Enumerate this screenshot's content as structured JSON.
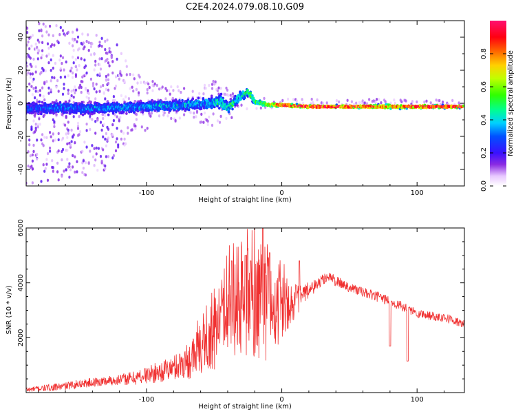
{
  "figure_title": "C2E4.2024.079.08.10.G09",
  "chart_data": [
    {
      "type": "heatmap",
      "name": "spectrogram",
      "xlabel": "Height of straight line (km)",
      "ylabel": "Frequency (Hz)",
      "xlim": [
        -189,
        135
      ],
      "ylim": [
        -50,
        50
      ],
      "xticks": [
        -100,
        0,
        100
      ],
      "yticks": [
        -40,
        -20,
        0,
        20,
        40
      ],
      "ytick_labels": [
        "-40",
        "-20",
        "0",
        "20",
        "40"
      ],
      "colorbar": {
        "label": "Normalized spectral amplitude",
        "range": [
          0,
          1
        ],
        "ticks": [
          0.0,
          0.2,
          0.4,
          0.6,
          0.8
        ],
        "tick_labels": [
          "0.0",
          "0.2",
          "0.4",
          "0.6",
          "0.8"
        ]
      },
      "band_center_hz": [
        [
          -189,
          -3
        ],
        [
          -160,
          -3
        ],
        [
          -130,
          -3
        ],
        [
          -100,
          -2
        ],
        [
          -70,
          -1
        ],
        [
          -55,
          0
        ],
        [
          -45,
          1
        ],
        [
          -40,
          -3
        ],
        [
          -32,
          3
        ],
        [
          -25,
          7
        ],
        [
          -20,
          1
        ],
        [
          -10,
          -1
        ],
        [
          0,
          -1
        ],
        [
          20,
          -2
        ],
        [
          60,
          -2
        ],
        [
          100,
          -2
        ],
        [
          135,
          -2
        ]
      ],
      "band_halfwidth_hz": [
        [
          -189,
          6
        ],
        [
          -120,
          5
        ],
        [
          -60,
          5
        ],
        [
          -45,
          6
        ],
        [
          -25,
          4
        ],
        [
          -15,
          2
        ],
        [
          0,
          1.5
        ],
        [
          60,
          1.2
        ],
        [
          80,
          2
        ],
        [
          100,
          1.5
        ],
        [
          135,
          1.2
        ]
      ],
      "band_peak_amplitude": [
        [
          -189,
          0.25
        ],
        [
          -140,
          0.3
        ],
        [
          -100,
          0.32
        ],
        [
          -60,
          0.35
        ],
        [
          -40,
          0.4
        ],
        [
          -25,
          0.45
        ],
        [
          -15,
          0.6
        ],
        [
          -5,
          0.85
        ],
        [
          0,
          1.0
        ],
        [
          60,
          1.0
        ],
        [
          80,
          0.8
        ],
        [
          100,
          1.0
        ],
        [
          135,
          1.0
        ]
      ],
      "noise_spread_hz": [
        [
          -189,
          50
        ],
        [
          -150,
          45
        ],
        [
          -125,
          40
        ],
        [
          -110,
          20
        ],
        [
          -90,
          12
        ],
        [
          -70,
          10
        ],
        [
          -50,
          14
        ],
        [
          -30,
          8
        ],
        [
          -20,
          4
        ],
        [
          0,
          3
        ],
        [
          135,
          2
        ]
      ]
    },
    {
      "type": "line",
      "name": "snr",
      "xlabel": "Height of straight line (km)",
      "ylabel": "SNR (10 * v/v)",
      "xlim": [
        -189,
        135
      ],
      "ylim": [
        0,
        6000
      ],
      "xticks": [
        -100,
        0,
        100
      ],
      "yticks": [
        2000,
        4000,
        6000
      ],
      "ytick_labels": [
        "2000",
        "4000",
        "6000"
      ],
      "color": "#f03030",
      "series_envelope": [
        [
          -189,
          100
        ],
        [
          -160,
          230
        ],
        [
          -150,
          320
        ],
        [
          -130,
          420
        ],
        [
          -110,
          520
        ],
        [
          -90,
          760
        ],
        [
          -80,
          900
        ],
        [
          -70,
          1150
        ],
        [
          -60,
          1450
        ],
        [
          -50,
          2100
        ],
        [
          -40,
          2700
        ],
        [
          -30,
          3000
        ],
        [
          -20,
          3000
        ],
        [
          -15,
          2900
        ],
        [
          -10,
          3050
        ],
        [
          -5,
          3050
        ],
        [
          0,
          3150
        ],
        [
          10,
          3350
        ],
        [
          20,
          3700
        ],
        [
          30,
          4100
        ],
        [
          35,
          4250
        ],
        [
          40,
          4050
        ],
        [
          50,
          3850
        ],
        [
          60,
          3650
        ],
        [
          70,
          3500
        ],
        [
          80,
          3350
        ],
        [
          90,
          3100
        ],
        [
          100,
          2900
        ],
        [
          110,
          2800
        ],
        [
          120,
          2750
        ],
        [
          135,
          2480
        ]
      ],
      "jitter_amplitude": [
        [
          -189,
          100
        ],
        [
          -120,
          200
        ],
        [
          -80,
          450
        ],
        [
          -60,
          900
        ],
        [
          -45,
          1600
        ],
        [
          -30,
          2000
        ],
        [
          -15,
          2100
        ],
        [
          -5,
          1500
        ],
        [
          5,
          900
        ],
        [
          15,
          400
        ],
        [
          30,
          200
        ],
        [
          135,
          160
        ]
      ],
      "peaks": [
        {
          "x": -14,
          "y": 6000
        },
        {
          "x": -37,
          "y": 4800
        },
        {
          "x": -27,
          "y": 5000
        },
        {
          "x": -23,
          "y": 4800
        },
        {
          "x": -9,
          "y": 5100
        },
        {
          "x": 13,
          "y": 4800
        },
        {
          "x": 23,
          "y": 3800
        },
        {
          "x": 94,
          "y": 3100
        }
      ],
      "dips": [
        {
          "x": 80,
          "y": 1700
        },
        {
          "x": 93,
          "y": 1150
        }
      ]
    }
  ]
}
